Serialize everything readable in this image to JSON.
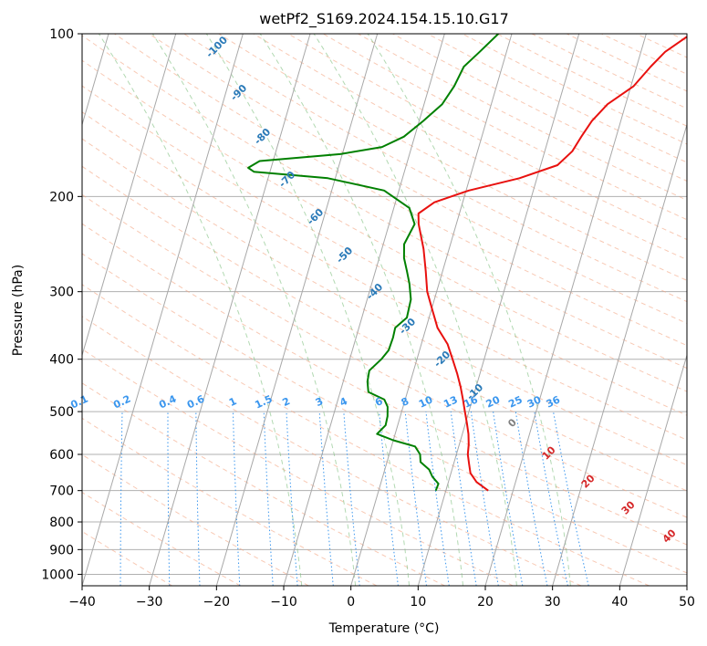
{
  "chart_data": {
    "type": "line",
    "title": "wetPf2_S169.2024.154.15.10.G17",
    "xlabel": "Temperature (°C)",
    "ylabel": "Pressure (hPa)",
    "xlim": [
      -40,
      50
    ],
    "ylim": [
      1050,
      100
    ],
    "y_scale": "log",
    "grid": true,
    "x_ticks": [
      "−40",
      "−30",
      "−20",
      "−10",
      "0",
      "10",
      "20",
      "30",
      "40",
      "50"
    ],
    "x_tick_values": [
      -40,
      -30,
      -20,
      -10,
      0,
      10,
      20,
      30,
      40,
      50
    ],
    "y_ticks": [
      "100",
      "200",
      "300",
      "400",
      "500",
      "600",
      "700",
      "800",
      "900",
      "1000"
    ],
    "y_tick_values": [
      100,
      200,
      300,
      400,
      500,
      600,
      700,
      800,
      900,
      1000
    ],
    "series": [
      {
        "color": "#e8110f",
        "points": [
          [
            16.3,
            700
          ],
          [
            14.2,
            675
          ],
          [
            12.9,
            650
          ],
          [
            12.3,
            625
          ],
          [
            11.7,
            600
          ],
          [
            11.4,
            575
          ],
          [
            10.9,
            550
          ],
          [
            10.2,
            525
          ],
          [
            9.4,
            500
          ],
          [
            8.6,
            475
          ],
          [
            7.7,
            450
          ],
          [
            6.6,
            425
          ],
          [
            5.3,
            400
          ],
          [
            3.9,
            375
          ],
          [
            1.7,
            350
          ],
          [
            0.2,
            325
          ],
          [
            -1.4,
            300
          ],
          [
            -2.5,
            275
          ],
          [
            -3.8,
            250
          ],
          [
            -5.6,
            225
          ],
          [
            -6.1,
            215
          ],
          [
            -4.2,
            205
          ],
          [
            0.4,
            195
          ],
          [
            7.4,
            185
          ],
          [
            12.5,
            175
          ],
          [
            14.1,
            165
          ],
          [
            14.8,
            155
          ],
          [
            15.7,
            145
          ],
          [
            17.3,
            135
          ],
          [
            20.4,
            125
          ],
          [
            22.1,
            115
          ],
          [
            23.6,
            108
          ],
          [
            26.7,
            100
          ]
        ]
      },
      {
        "color": "#008000",
        "points": [
          [
            8.5,
            700
          ],
          [
            8.6,
            680
          ],
          [
            7.4,
            660
          ],
          [
            6.6,
            640
          ],
          [
            5.0,
            620
          ],
          [
            4.6,
            600
          ],
          [
            3.5,
            580
          ],
          [
            0.0,
            565
          ],
          [
            -2.7,
            550
          ],
          [
            -1.8,
            530
          ],
          [
            -1.9,
            510
          ],
          [
            -2.3,
            490
          ],
          [
            -3.1,
            475
          ],
          [
            -5.8,
            460
          ],
          [
            -6.4,
            440
          ],
          [
            -6.6,
            420
          ],
          [
            -5.3,
            400
          ],
          [
            -4.6,
            385
          ],
          [
            -4.5,
            365
          ],
          [
            -4.6,
            350
          ],
          [
            -3.3,
            335
          ],
          [
            -3.5,
            310
          ],
          [
            -4.4,
            290
          ],
          [
            -5.3,
            275
          ],
          [
            -6.3,
            260
          ],
          [
            -6.9,
            245
          ],
          [
            -6.2,
            225
          ],
          [
            -7.7,
            210
          ],
          [
            -12.2,
            195
          ],
          [
            -21.1,
            185
          ],
          [
            -32.4,
            180
          ],
          [
            -33.4,
            177
          ],
          [
            -32.0,
            172
          ],
          [
            -20.3,
            167
          ],
          [
            -14.4,
            162
          ],
          [
            -11.6,
            155
          ],
          [
            -9.4,
            145
          ],
          [
            -7.3,
            135
          ],
          [
            -6.3,
            125
          ],
          [
            -5.7,
            115
          ],
          [
            -4.0,
            108
          ],
          [
            -2.0,
            100
          ]
        ]
      }
    ],
    "annotations": {
      "dry_adiabat_labels": [
        "-100",
        "-90",
        "-80",
        "-70",
        "-60",
        "-50",
        "-40",
        "-30",
        "-20",
        "-10"
      ],
      "dry_adiabat_color": "#2a7ab8",
      "mixing_ratio_labels": [
        "0.1",
        "0.2",
        "0.4",
        "0.6",
        "1",
        "1.5",
        "2",
        "3",
        "4",
        "6",
        "8",
        "10",
        "13",
        "16",
        "20",
        "25",
        "30",
        "36"
      ],
      "mixing_ratio_color": "#3a96ee",
      "moist_adiabat_labels": [
        "0",
        "10",
        "20",
        "30",
        "40"
      ],
      "moist_adiabat_label_colors": [
        "#808080",
        "#d62728",
        "#d62728",
        "#d62728",
        "#d62728"
      ]
    }
  }
}
